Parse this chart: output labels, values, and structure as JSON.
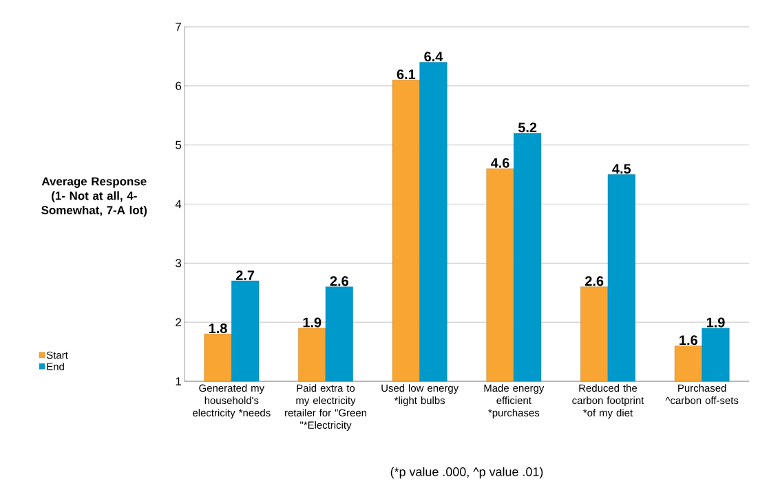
{
  "chart_data": {
    "type": "bar",
    "ylabel": "Average Response (1- Not at all, 4- Somewhat, 7-A lot)",
    "categories": [
      "Generated my household's electricity *needs",
      "Paid extra to my electricity retailer for \"Green \"*Electricity",
      "Used low energy *light bulbs",
      "Made energy efficient *purchases",
      "Reduced the carbon footprint *of my diet",
      "Purchased ^carbon off-sets"
    ],
    "series": [
      {
        "name": "Start",
        "color": "#f9a533",
        "values": [
          1.8,
          1.9,
          6.1,
          4.6,
          2.6,
          1.6
        ]
      },
      {
        "name": "End",
        "color": "#0099cc",
        "values": [
          2.7,
          2.6,
          6.4,
          5.2,
          4.5,
          1.9
        ]
      }
    ],
    "ylim": [
      1,
      7
    ],
    "yticks": [
      1,
      2,
      3,
      4,
      5,
      6,
      7
    ],
    "grid": "y",
    "legend": "bottom left",
    "data_labels": true,
    "annotations": [
      "(*p value .000, ^p value .01)"
    ]
  }
}
